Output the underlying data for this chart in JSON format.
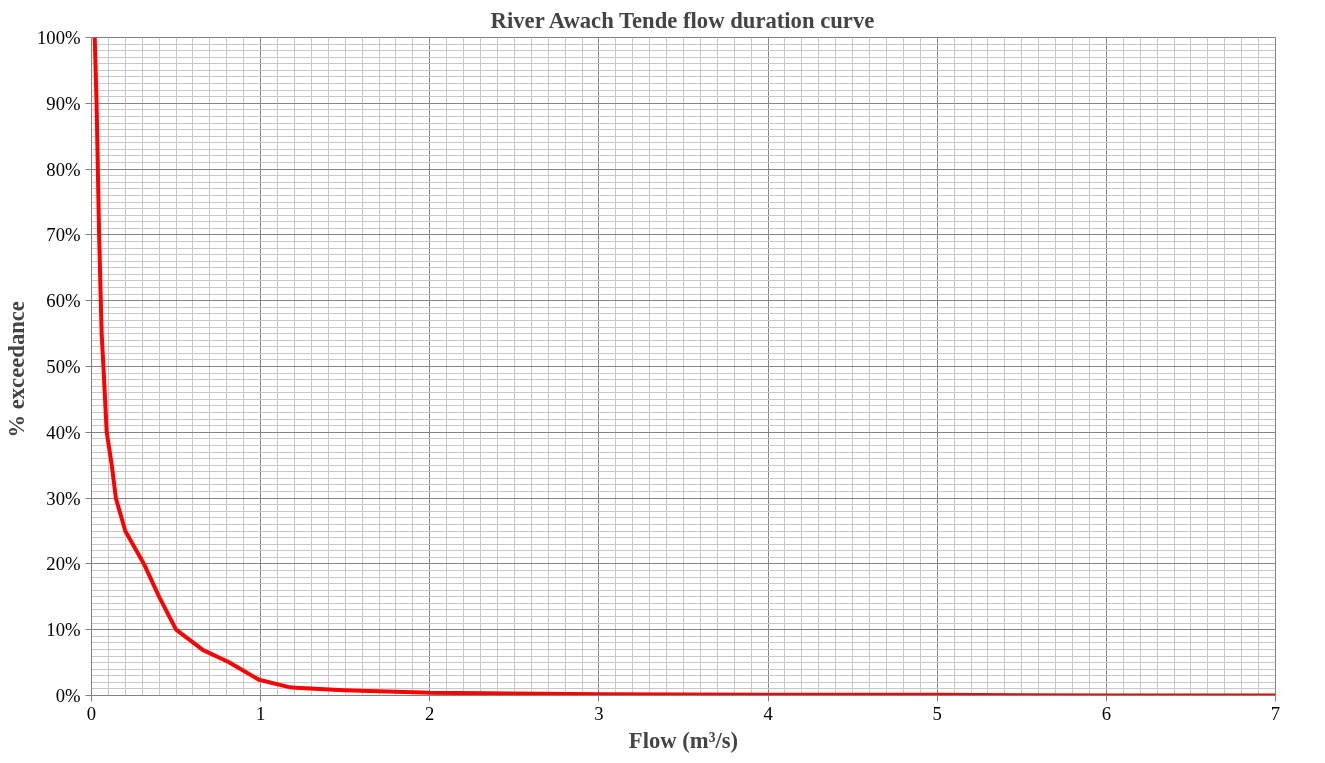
{
  "chart_data": {
    "type": "line",
    "title": "River Awach Tende flow duration curve",
    "xlabel": "Flow (m³/s)",
    "ylabel": "%  exceedance",
    "x": [
      0.019,
      0.03,
      0.045,
      0.06,
      0.071,
      0.09,
      0.12,
      0.144,
      0.2,
      0.31,
      0.4,
      0.5,
      0.66,
      0.81,
      0.99,
      1.18,
      1.49,
      2,
      3,
      4,
      5,
      6,
      7
    ],
    "series": [
      {
        "color": "#ff0000",
        "values": [
          100,
          90,
          70,
          55,
          49.7,
          40,
          35,
          30,
          25,
          20,
          15,
          10,
          6.9,
          5.1,
          2.4,
          1.2,
          0.8,
          0.4,
          0.2,
          0.1,
          0.1,
          0,
          0
        ]
      }
    ],
    "xlim": [
      0,
      7
    ],
    "xticks": [
      0,
      1,
      2,
      3,
      4,
      5,
      6,
      7
    ],
    "ylim": [
      0,
      100
    ],
    "yticks": [
      {
        "value": 0,
        "label": "0%"
      },
      {
        "value": 10,
        "label": "10%"
      },
      {
        "value": 20,
        "label": "20%"
      },
      {
        "value": 30,
        "label": "30%"
      },
      {
        "value": 40,
        "label": "40%"
      },
      {
        "value": 50,
        "label": "50%"
      },
      {
        "value": 60,
        "label": "60%"
      },
      {
        "value": 70,
        "label": "70%"
      },
      {
        "value": 80,
        "label": "80%"
      },
      {
        "value": 90,
        "label": "90%"
      },
      {
        "value": 100,
        "label": "100%"
      }
    ],
    "grid": true,
    "marker": "none",
    "line_style": "solid"
  }
}
